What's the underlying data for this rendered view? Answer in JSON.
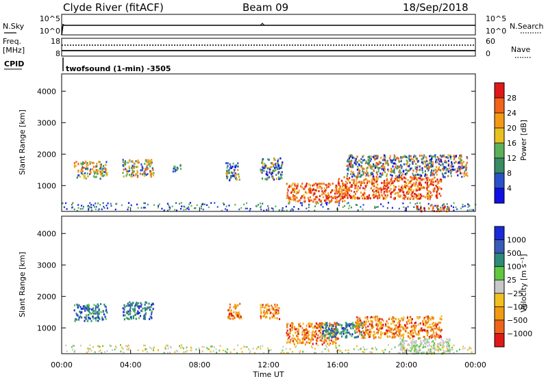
{
  "header": {
    "station": "Clyde River (fitACF)",
    "beam": "Beam 09",
    "date": "18/Sep/2018"
  },
  "noise_panel": {
    "left_label": "N.Sky",
    "right_label": "N.Search",
    "y_ticks": [
      "10^5",
      "10^0"
    ]
  },
  "freq_panel": {
    "left_label": "Freq.",
    "left_unit": "[MHz]",
    "left_ticks": [
      "18",
      "8"
    ],
    "right_label": "Nave",
    "right_ticks": [
      "60",
      "0"
    ],
    "cpid_label": "CPID",
    "program": "twofsound (1-min) -3505"
  },
  "x_axis": {
    "ticks": [
      "00:00",
      "04:00",
      "08:00",
      "12:00",
      "16:00",
      "20:00",
      "00:00"
    ],
    "label": "Time UT"
  },
  "power_panel": {
    "ylabel": "Slant Range [km]",
    "y_ticks": [
      "1000",
      "2000",
      "3000",
      "4000"
    ],
    "cbar_label": "Power [dB]",
    "cbar_ticks": [
      "4",
      "8",
      "12",
      "16",
      "20",
      "24",
      "28"
    ],
    "cbar_colors": [
      "#1010e6",
      "#2a52c8",
      "#3a8a64",
      "#5bb05a",
      "#e8c020",
      "#f39a14",
      "#f2641a",
      "#e01818"
    ]
  },
  "velocity_panel": {
    "ylabel": "Slant Range [km]",
    "y_ticks": [
      "1000",
      "2000",
      "3000",
      "4000"
    ],
    "cbar_label": "Velocity [m s⁻¹]",
    "cbar_ticks": [
      "1000",
      "500",
      "100",
      "25",
      "−25",
      "−100",
      "−500",
      "−1000"
    ],
    "cbar_colors": [
      "#1a2ad8",
      "#3a5ab8",
      "#2e8a78",
      "#5fc840",
      "#c8c8c8",
      "#f0c020",
      "#f29a10",
      "#f0641a",
      "#e01818"
    ]
  },
  "chart_data": {
    "type": "heatmap",
    "x_range_hours": [
      0,
      24
    ],
    "y_range_km": [
      180,
      4550
    ],
    "grid": false,
    "power_regions": [
      {
        "t0": 0.7,
        "t1": 2.6,
        "r0": 1250,
        "r1": 1800,
        "level": "mixed-high"
      },
      {
        "t0": 3.5,
        "t1": 5.3,
        "r0": 1300,
        "r1": 1850,
        "level": "mixed-high"
      },
      {
        "t0": 6.4,
        "t1": 6.9,
        "r0": 1450,
        "r1": 1700,
        "level": "mixed"
      },
      {
        "t0": 9.5,
        "t1": 10.3,
        "r0": 1200,
        "r1": 1750,
        "level": "mixed"
      },
      {
        "t0": 11.5,
        "t1": 12.8,
        "r0": 1200,
        "r1": 1900,
        "level": "mixed"
      },
      {
        "t0": 13.0,
        "t1": 16.5,
        "r0": 500,
        "r1": 1100,
        "level": "high"
      },
      {
        "t0": 16.0,
        "t1": 22.0,
        "r0": 600,
        "r1": 1300,
        "level": "high"
      },
      {
        "t0": 16.5,
        "t1": 23.5,
        "r0": 1300,
        "r1": 2000,
        "level": "low-mixed"
      },
      {
        "t0": 20.5,
        "t1": 22.5,
        "r0": 200,
        "r1": 400,
        "level": "high"
      }
    ],
    "velocity_regions": [
      {
        "t0": 0.7,
        "t1": 2.6,
        "r0": 1250,
        "r1": 1800,
        "level": "positive"
      },
      {
        "t0": 3.5,
        "t1": 5.3,
        "r0": 1300,
        "r1": 1850,
        "level": "positive"
      },
      {
        "t0": 9.6,
        "t1": 10.4,
        "r0": 1300,
        "r1": 1800,
        "level": "negative"
      },
      {
        "t0": 11.5,
        "t1": 12.6,
        "r0": 1300,
        "r1": 1800,
        "level": "negative"
      },
      {
        "t0": 13.0,
        "t1": 16.0,
        "r0": 500,
        "r1": 1200,
        "level": "negative"
      },
      {
        "t0": 15.0,
        "t1": 17.5,
        "r0": 700,
        "r1": 1200,
        "level": "positive"
      },
      {
        "t0": 17.0,
        "t1": 22.0,
        "r0": 700,
        "r1": 1400,
        "level": "negative"
      },
      {
        "t0": 19.5,
        "t1": 22.5,
        "r0": 200,
        "r1": 700,
        "level": "ground"
      }
    ]
  }
}
